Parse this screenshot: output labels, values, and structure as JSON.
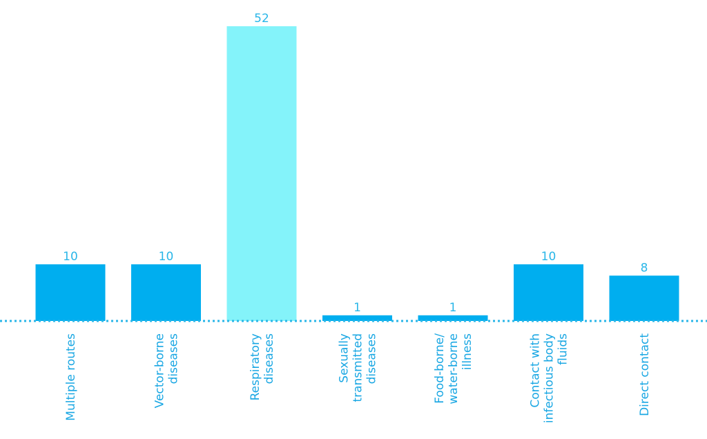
{
  "chart_data": {
    "type": "bar",
    "categories": [
      [
        "Multiple routes"
      ],
      [
        "Vector-borne",
        "diseases"
      ],
      [
        "Respiratory",
        "diseases"
      ],
      [
        "Sexually",
        "transmitted",
        "diseases"
      ],
      [
        "Food-borne/",
        "water-borne",
        "illness"
      ],
      [
        "Contact with",
        "infectious body",
        "fluids"
      ],
      [
        "Direct contact"
      ]
    ],
    "values": [
      10,
      10,
      52,
      1,
      1,
      10,
      8
    ],
    "value_labels": [
      "10",
      "10",
      "52",
      "1",
      "1",
      "10",
      "8"
    ],
    "colors": {
      "bar": "#00aeef",
      "highlight_bar": "#84f3fa",
      "baseline": "#29b6e8",
      "value_text": "#29b6e8",
      "category_text": "#1aa7e3"
    },
    "highlight_index": 2,
    "ylim": [
      0,
      52
    ],
    "grid": false,
    "legend": "none",
    "title": "",
    "xlabel": "",
    "ylabel": ""
  }
}
